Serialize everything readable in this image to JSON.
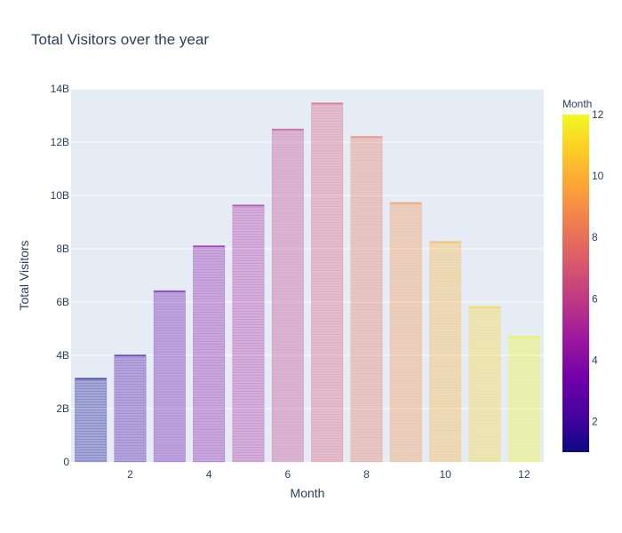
{
  "chart_data": {
    "type": "bar",
    "title": "Total Visitors over the year",
    "xlabel": "Month",
    "ylabel": "Total Visitors",
    "x": [
      1,
      2,
      3,
      4,
      5,
      6,
      7,
      8,
      9,
      10,
      11,
      12
    ],
    "values": [
      3150000000.0,
      4020000000.0,
      6430000000.0,
      8120000000.0,
      9650000000.0,
      12500000000.0,
      13480000000.0,
      12220000000.0,
      9740000000.0,
      8280000000.0,
      5840000000.0,
      4720000000.0
    ],
    "ylim": [
      0,
      14000000000.0
    ],
    "xlim": [
      0.5,
      12.5
    ],
    "x_ticks": [
      2,
      4,
      6,
      8,
      10,
      12
    ],
    "y_ticks": [
      0,
      2000000000.0,
      4000000000.0,
      6000000000.0,
      8000000000.0,
      10000000000.0,
      12000000000.0,
      14000000000.0
    ],
    "y_tick_labels": [
      "0",
      "2B",
      "4B",
      "6B",
      "8B",
      "10B",
      "12B",
      "14B"
    ],
    "grid": true,
    "colorbar": {
      "title": "Month",
      "range": [
        1,
        12
      ],
      "ticks": [
        2,
        4,
        6,
        8,
        10,
        12
      ],
      "colorscale": [
        "#0d0887",
        "#46039f",
        "#7201a8",
        "#9c179e",
        "#bd3786",
        "#d8576b",
        "#ed7953",
        "#fb9f3a",
        "#fdca26",
        "#f0f921"
      ]
    },
    "bar_opacity": 0.3,
    "colors": {
      "plot_bg": "#e5ecf6",
      "paper_bg": "#ffffff",
      "grid": "#ffffff",
      "text": "#2a3f5f"
    }
  }
}
